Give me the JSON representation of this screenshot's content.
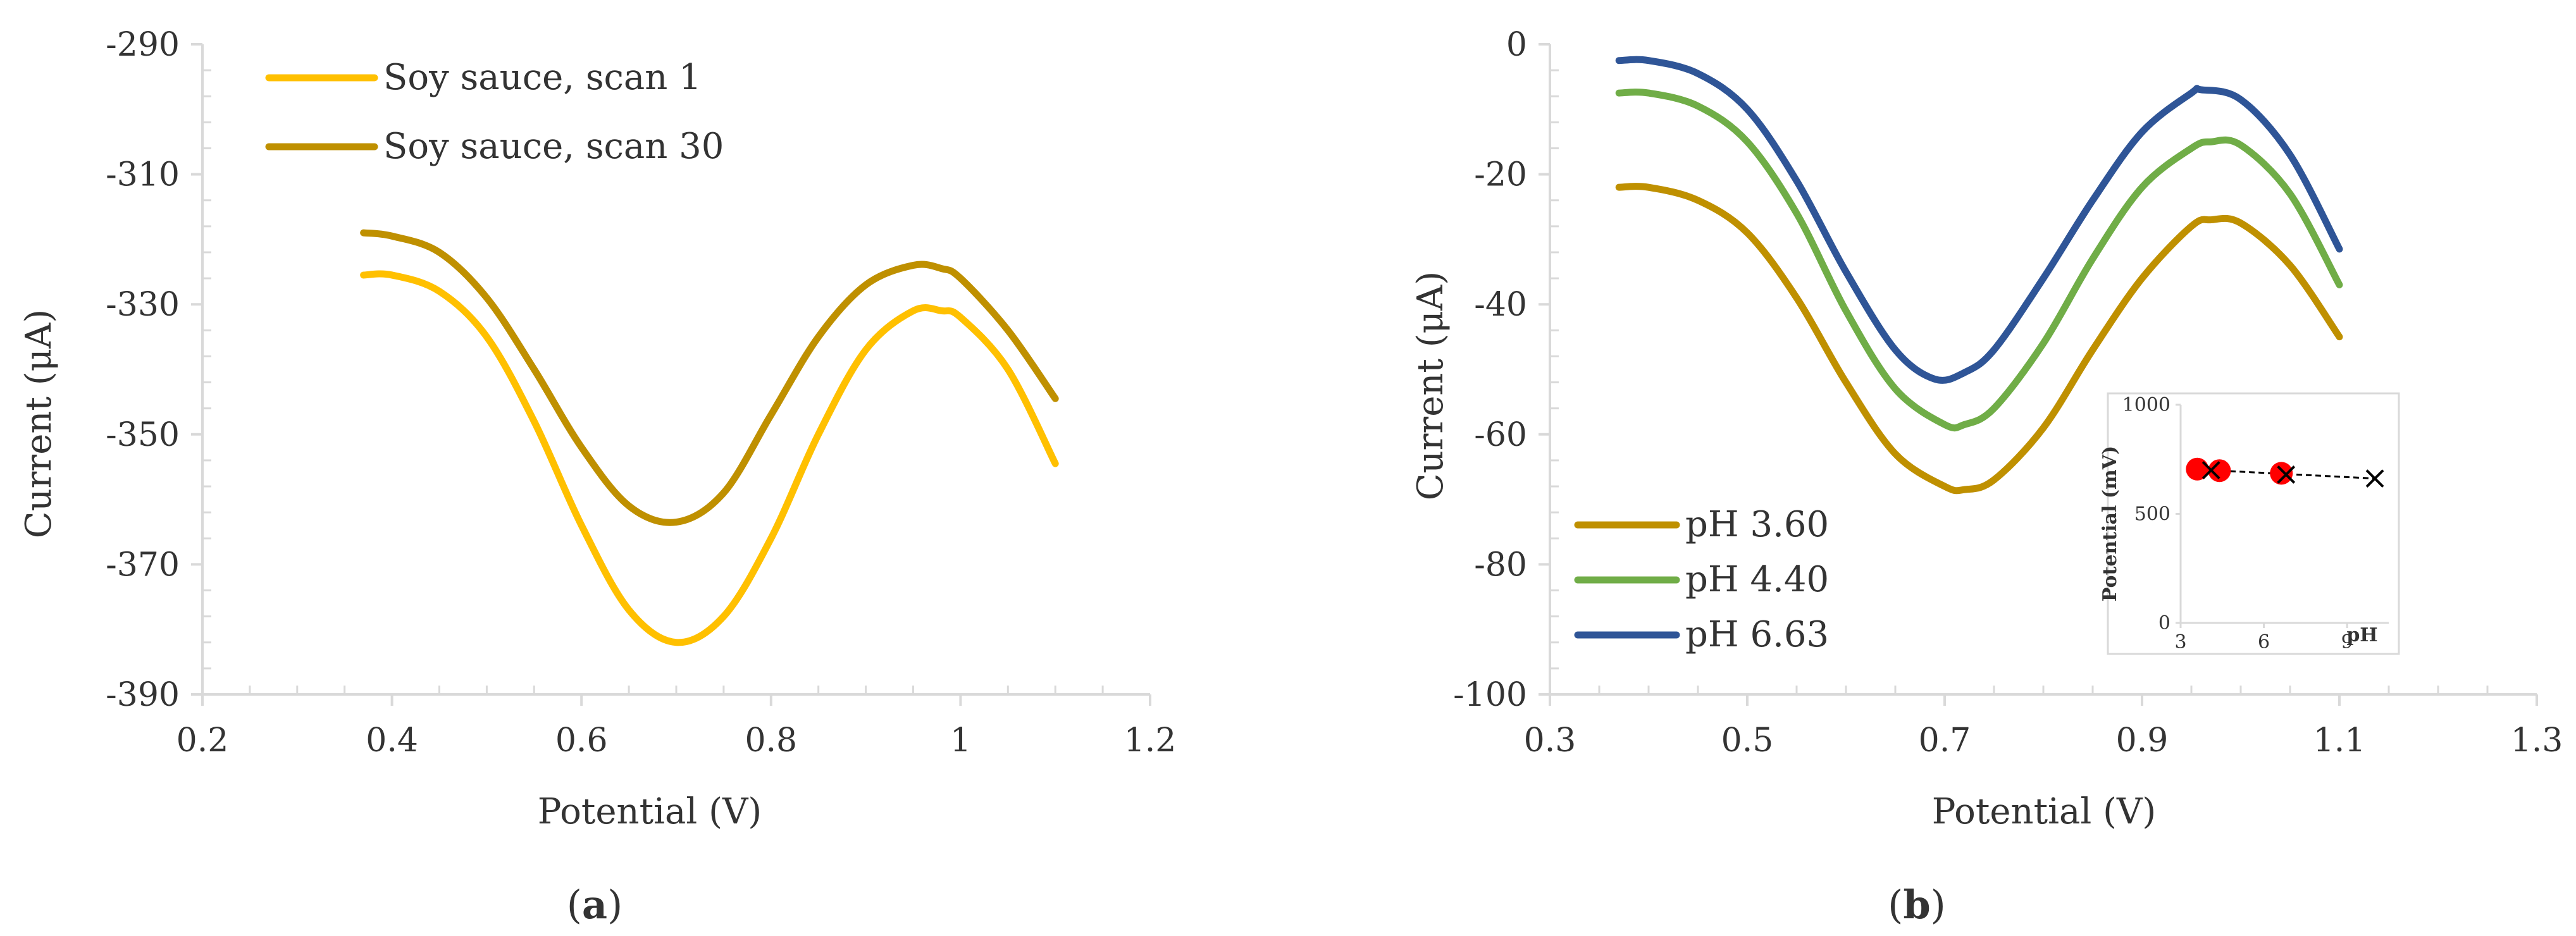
{
  "colors": {
    "scan1": "#ffc000",
    "scan30": "#bf9000",
    "ph360": "#bf9000",
    "ph440": "#70ad47",
    "ph663": "#2f5597",
    "axis": "#d9d9d9",
    "marker_red": "#ff0000",
    "marker_x": "#000000"
  },
  "panels": [
    {
      "label_open": "(",
      "label_letter": "a",
      "label_close": ")",
      "chart": 0
    },
    {
      "label_open": "(",
      "label_letter": "b",
      "label_close": ")",
      "chart": 1
    }
  ],
  "chart_data": [
    {
      "type": "line",
      "title": "",
      "xlabel": "Potential (V)",
      "ylabel": "Current (μA)",
      "xlim": [
        0.2,
        1.2
      ],
      "ylim": [
        -390,
        -290
      ],
      "xticks": [
        0.2,
        0.4,
        0.6,
        0.8,
        1,
        1.2
      ],
      "xtick_labels": [
        "0.2",
        "0.4",
        "0.6",
        "0.8",
        "1",
        "1.2"
      ],
      "yticks": [
        -290,
        -310,
        -330,
        -350,
        -370,
        -390
      ],
      "ytick_labels": [
        "-290",
        "-310",
        "-330",
        "-350",
        "-370",
        "-390"
      ],
      "legend_position": "top-left",
      "series": [
        {
          "name": "Soy sauce, scan 1",
          "color_key": "scan1",
          "x": [
            0.37,
            0.4,
            0.45,
            0.5,
            0.55,
            0.6,
            0.65,
            0.7,
            0.75,
            0.8,
            0.85,
            0.9,
            0.95,
            0.98,
            1.0,
            1.05,
            1.1
          ],
          "y": [
            -325.5,
            -325.5,
            -328,
            -335,
            -348,
            -364,
            -377,
            -382,
            -378,
            -366,
            -350,
            -337,
            -331,
            -331,
            -332,
            -340,
            -354.5
          ]
        },
        {
          "name": "Soy sauce, scan 30",
          "color_key": "scan30",
          "x": [
            0.37,
            0.4,
            0.45,
            0.5,
            0.55,
            0.6,
            0.65,
            0.7,
            0.75,
            0.8,
            0.85,
            0.9,
            0.95,
            0.98,
            1.0,
            1.05,
            1.1
          ],
          "y": [
            -319,
            -319.5,
            -322,
            -329,
            -340,
            -352,
            -361,
            -363.5,
            -359,
            -347,
            -335,
            -327,
            -324,
            -324.5,
            -326,
            -334,
            -344.5
          ]
        }
      ]
    },
    {
      "type": "line",
      "title": "",
      "xlabel": "Potential (V)",
      "ylabel": "Current (μA)",
      "xlim": [
        0.3,
        1.3
      ],
      "ylim": [
        -100,
        0
      ],
      "xticks": [
        0.3,
        0.5,
        0.7,
        0.9,
        1.1,
        1.3
      ],
      "xtick_labels": [
        "0.3",
        "0.5",
        "0.7",
        "0.9",
        "1.1",
        "1.3"
      ],
      "yticks": [
        0,
        -20,
        -40,
        -60,
        -80,
        -100
      ],
      "ytick_labels": [
        "0",
        "-20",
        "-40",
        "-60",
        "-80",
        "-100"
      ],
      "legend_position": "bottom-left",
      "series": [
        {
          "name": "pH 3.60",
          "color_key": "ph360",
          "x": [
            0.37,
            0.4,
            0.45,
            0.5,
            0.55,
            0.6,
            0.65,
            0.7,
            0.72,
            0.75,
            0.8,
            0.85,
            0.9,
            0.95,
            0.97,
            1.0,
            1.05,
            1.1
          ],
          "y": [
            -22,
            -22,
            -24,
            -29,
            -39,
            -52,
            -63,
            -68,
            -68.5,
            -67,
            -59,
            -47,
            -36,
            -28,
            -27,
            -27.5,
            -34,
            -45
          ]
        },
        {
          "name": "pH 4.40",
          "color_key": "ph440",
          "x": [
            0.37,
            0.4,
            0.45,
            0.5,
            0.55,
            0.6,
            0.65,
            0.7,
            0.72,
            0.75,
            0.8,
            0.85,
            0.9,
            0.95,
            0.97,
            1.0,
            1.05,
            1.1
          ],
          "y": [
            -7.5,
            -7.5,
            -9.5,
            -15,
            -26,
            -41,
            -53,
            -58.5,
            -58.5,
            -56,
            -46,
            -33,
            -22,
            -16,
            -15,
            -15.5,
            -23,
            -37
          ]
        },
        {
          "name": "pH 6.63",
          "color_key": "ph663",
          "x": [
            0.37,
            0.4,
            0.45,
            0.5,
            0.55,
            0.6,
            0.65,
            0.69,
            0.72,
            0.75,
            0.8,
            0.85,
            0.9,
            0.95,
            0.96,
            1.0,
            1.05,
            1.1
          ],
          "y": [
            -2.5,
            -2.5,
            -4.5,
            -10,
            -21,
            -35,
            -47,
            -51.5,
            -50.5,
            -47,
            -36,
            -24,
            -13.5,
            -7.5,
            -7,
            -8.5,
            -17,
            -31.5
          ]
        }
      ],
      "inset": {
        "type": "scatter",
        "xlabel": "pH",
        "ylabel": "Potential (mV)",
        "xlim": [
          3,
          10.5
        ],
        "ylim": [
          0,
          1000
        ],
        "xticks": [
          3,
          6,
          9
        ],
        "xtick_labels": [
          "3",
          "6",
          "9"
        ],
        "yticks": [
          0,
          500,
          1000
        ],
        "ytick_labels": [
          "0",
          "500",
          "1000"
        ],
        "red_points": {
          "x": [
            3.6,
            4.4,
            6.63
          ],
          "y": [
            705,
            698,
            686
          ]
        },
        "x_points": {
          "x": [
            4.1,
            6.8,
            10.0
          ],
          "y": [
            700,
            680,
            662
          ]
        },
        "trend_line": {
          "x": [
            4.1,
            10.0
          ],
          "y": [
            700,
            662
          ]
        }
      }
    }
  ]
}
